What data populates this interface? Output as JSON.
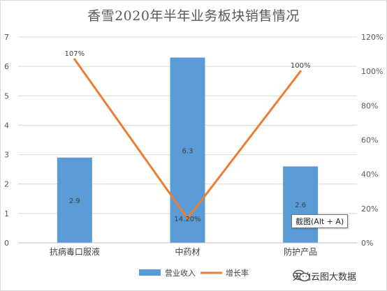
{
  "chart_data": {
    "type": "bar",
    "title": "香雪2020年半年业务板块销售情况",
    "categories": [
      "抗病毒口服液",
      "中药材",
      "防护产品"
    ],
    "series": [
      {
        "name": "营业收入",
        "type": "bar",
        "axis": "left",
        "values": [
          2.9,
          6.3,
          2.6
        ],
        "labels": [
          "2.9",
          "6.3",
          "2.6"
        ],
        "color": "#5b9bd5"
      },
      {
        "name": "增长率",
        "type": "line",
        "axis": "right",
        "values": [
          107,
          14.2,
          100
        ],
        "labels": [
          "107%",
          "14.20%",
          "100%"
        ],
        "color": "#ed7d31"
      }
    ],
    "y_left": {
      "ylim": [
        0,
        7
      ],
      "ticks": [
        "0",
        "1",
        "2",
        "3",
        "4",
        "5",
        "6",
        "7"
      ]
    },
    "y_right": {
      "ylim": [
        0,
        120
      ],
      "ticks": [
        "0%",
        "20%",
        "40%",
        "60%",
        "80%",
        "100%",
        "120%"
      ]
    },
    "grid": true,
    "legend": "bottom"
  },
  "tooltip": {
    "text": "截图(Alt + A)"
  },
  "watermark": {
    "text": "天地云图大数据",
    "icon": "wechat-icon"
  }
}
